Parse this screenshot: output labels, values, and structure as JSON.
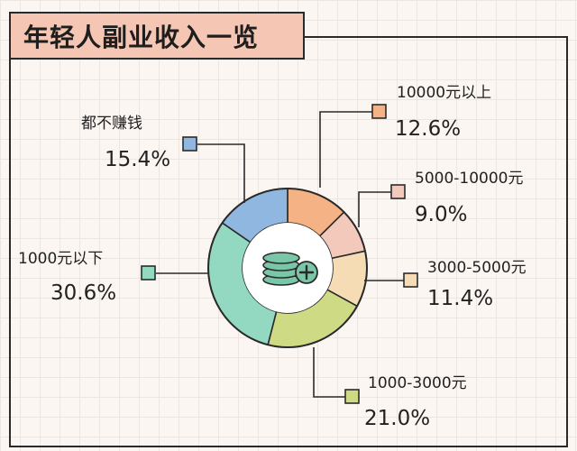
{
  "title": "年轻人副业收入一览",
  "chart_data": {
    "type": "pie",
    "variant": "donut",
    "series": [
      {
        "label": "10000元以上",
        "value": 12.6,
        "display": "12.6%",
        "color": "#f5b385"
      },
      {
        "label": "5000-10000元",
        "value": 9.0,
        "display": "9.0%",
        "color": "#f3c9bb"
      },
      {
        "label": "3000-5000元",
        "value": 11.4,
        "display": "11.4%",
        "color": "#f6dcb5"
      },
      {
        "label": "1000-3000元",
        "value": 21.0,
        "display": "21.0%",
        "color": "#cfdb84"
      },
      {
        "label": "1000元以下",
        "value": 30.6,
        "display": "30.6%",
        "color": "#93d8c1"
      },
      {
        "label": "都不赚钱",
        "value": 15.4,
        "display": "15.4%",
        "color": "#8fb7e0"
      }
    ],
    "center_icon": "coin-stack-plus-icon"
  }
}
